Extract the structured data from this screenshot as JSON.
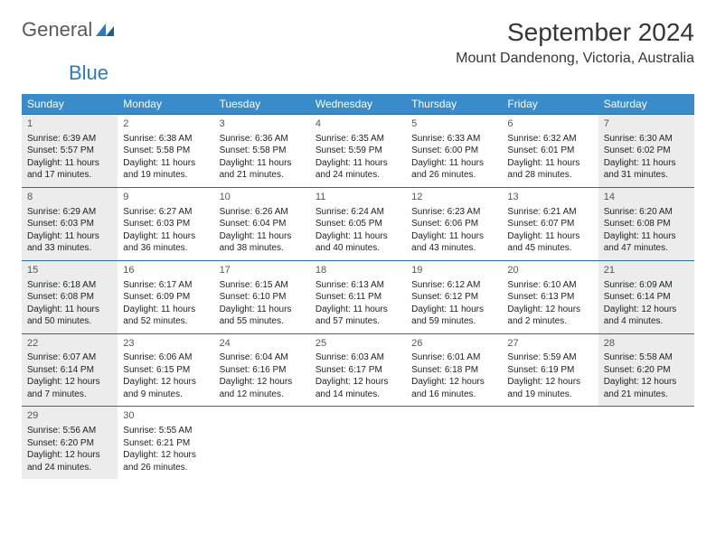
{
  "brand": {
    "part1": "General",
    "part2": "Blue"
  },
  "title": "September 2024",
  "location": "Mount Dandenong, Victoria, Australia",
  "colors": {
    "header_bg": "#3a8bc9",
    "rule": "#2b6aa0",
    "shade": "#ececec",
    "text": "#333333",
    "brand_blue": "#2b7bbf",
    "brand_gray": "#5a5a5a"
  },
  "dayNames": [
    "Sunday",
    "Monday",
    "Tuesday",
    "Wednesday",
    "Thursday",
    "Friday",
    "Saturday"
  ],
  "labels": {
    "sunrise": "Sunrise:",
    "sunset": "Sunset:",
    "daylight": "Daylight:"
  },
  "weeks": [
    [
      {
        "n": "1",
        "sr": "6:39 AM",
        "ss": "5:57 PM",
        "dl": "11 hours and 17 minutes.",
        "shade": true
      },
      {
        "n": "2",
        "sr": "6:38 AM",
        "ss": "5:58 PM",
        "dl": "11 hours and 19 minutes."
      },
      {
        "n": "3",
        "sr": "6:36 AM",
        "ss": "5:58 PM",
        "dl": "11 hours and 21 minutes."
      },
      {
        "n": "4",
        "sr": "6:35 AM",
        "ss": "5:59 PM",
        "dl": "11 hours and 24 minutes."
      },
      {
        "n": "5",
        "sr": "6:33 AM",
        "ss": "6:00 PM",
        "dl": "11 hours and 26 minutes."
      },
      {
        "n": "6",
        "sr": "6:32 AM",
        "ss": "6:01 PM",
        "dl": "11 hours and 28 minutes."
      },
      {
        "n": "7",
        "sr": "6:30 AM",
        "ss": "6:02 PM",
        "dl": "11 hours and 31 minutes.",
        "shade": true
      }
    ],
    [
      {
        "n": "8",
        "sr": "6:29 AM",
        "ss": "6:03 PM",
        "dl": "11 hours and 33 minutes.",
        "shade": true
      },
      {
        "n": "9",
        "sr": "6:27 AM",
        "ss": "6:03 PM",
        "dl": "11 hours and 36 minutes."
      },
      {
        "n": "10",
        "sr": "6:26 AM",
        "ss": "6:04 PM",
        "dl": "11 hours and 38 minutes."
      },
      {
        "n": "11",
        "sr": "6:24 AM",
        "ss": "6:05 PM",
        "dl": "11 hours and 40 minutes."
      },
      {
        "n": "12",
        "sr": "6:23 AM",
        "ss": "6:06 PM",
        "dl": "11 hours and 43 minutes."
      },
      {
        "n": "13",
        "sr": "6:21 AM",
        "ss": "6:07 PM",
        "dl": "11 hours and 45 minutes."
      },
      {
        "n": "14",
        "sr": "6:20 AM",
        "ss": "6:08 PM",
        "dl": "11 hours and 47 minutes.",
        "shade": true
      }
    ],
    [
      {
        "n": "15",
        "sr": "6:18 AM",
        "ss": "6:08 PM",
        "dl": "11 hours and 50 minutes.",
        "shade": true
      },
      {
        "n": "16",
        "sr": "6:17 AM",
        "ss": "6:09 PM",
        "dl": "11 hours and 52 minutes."
      },
      {
        "n": "17",
        "sr": "6:15 AM",
        "ss": "6:10 PM",
        "dl": "11 hours and 55 minutes."
      },
      {
        "n": "18",
        "sr": "6:13 AM",
        "ss": "6:11 PM",
        "dl": "11 hours and 57 minutes."
      },
      {
        "n": "19",
        "sr": "6:12 AM",
        "ss": "6:12 PM",
        "dl": "11 hours and 59 minutes."
      },
      {
        "n": "20",
        "sr": "6:10 AM",
        "ss": "6:13 PM",
        "dl": "12 hours and 2 minutes."
      },
      {
        "n": "21",
        "sr": "6:09 AM",
        "ss": "6:14 PM",
        "dl": "12 hours and 4 minutes.",
        "shade": true
      }
    ],
    [
      {
        "n": "22",
        "sr": "6:07 AM",
        "ss": "6:14 PM",
        "dl": "12 hours and 7 minutes.",
        "shade": true
      },
      {
        "n": "23",
        "sr": "6:06 AM",
        "ss": "6:15 PM",
        "dl": "12 hours and 9 minutes."
      },
      {
        "n": "24",
        "sr": "6:04 AM",
        "ss": "6:16 PM",
        "dl": "12 hours and 12 minutes."
      },
      {
        "n": "25",
        "sr": "6:03 AM",
        "ss": "6:17 PM",
        "dl": "12 hours and 14 minutes."
      },
      {
        "n": "26",
        "sr": "6:01 AM",
        "ss": "6:18 PM",
        "dl": "12 hours and 16 minutes."
      },
      {
        "n": "27",
        "sr": "5:59 AM",
        "ss": "6:19 PM",
        "dl": "12 hours and 19 minutes."
      },
      {
        "n": "28",
        "sr": "5:58 AM",
        "ss": "6:20 PM",
        "dl": "12 hours and 21 minutes.",
        "shade": true
      }
    ],
    [
      {
        "n": "29",
        "sr": "5:56 AM",
        "ss": "6:20 PM",
        "dl": "12 hours and 24 minutes.",
        "shade": true
      },
      {
        "n": "30",
        "sr": "5:55 AM",
        "ss": "6:21 PM",
        "dl": "12 hours and 26 minutes."
      },
      null,
      null,
      null,
      null,
      null
    ]
  ]
}
